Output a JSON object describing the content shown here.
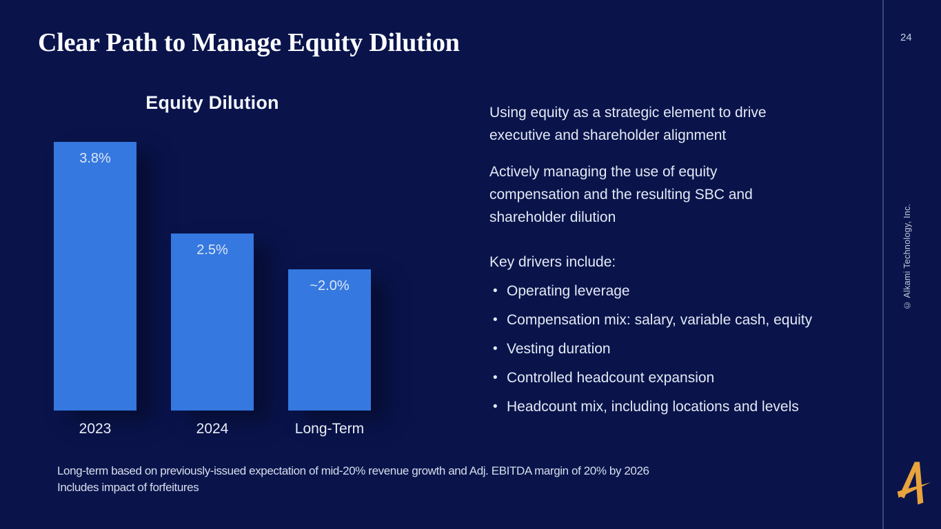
{
  "slide": {
    "title": "Clear Path to Manage Equity Dilution",
    "page_number": "24",
    "copyright": "© Alkami Technology, Inc.",
    "footnote": "Long-term based on previously-issued expectation of mid-20% revenue growth and Adj. EBITDA margin of 20% by 2026\nIncludes impact of forfeitures",
    "logo_name": "alkami-a-logo"
  },
  "chart_data": {
    "type": "bar",
    "title": "Equity Dilution",
    "categories": [
      "2023",
      "2024",
      "Long-Term"
    ],
    "values": [
      3.8,
      2.5,
      2.0
    ],
    "value_labels": [
      "3.8%",
      "2.5%",
      "~2.0%"
    ],
    "xlabel": "",
    "ylabel": "",
    "ylim": [
      0,
      3.8
    ],
    "grid": false,
    "legend": false,
    "bar_color": "#3578DF"
  },
  "content": {
    "paragraphs": [
      "Using equity as a strategic element to drive\nexecutive and shareholder alignment",
      "Actively managing the use of equity\ncompensation and the resulting SBC and\nshareholder dilution"
    ],
    "list_header": "Key drivers include:",
    "bullets": [
      "Operating leverage",
      "Compensation mix: salary, variable cash, equity",
      "Vesting duration",
      "Controlled headcount expansion",
      "Headcount mix, including locations and levels"
    ]
  },
  "colors": {
    "background": "#0A144B",
    "bar_blue": "#3578DF",
    "accent_gold": "#E8A33D",
    "divider": "#3D4775",
    "text_light": "#E3E9F4"
  }
}
